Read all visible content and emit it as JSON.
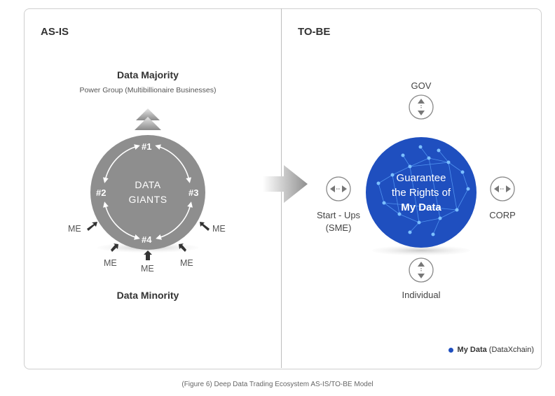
{
  "as_is": {
    "title": "AS-IS",
    "data_majority": "Data Majority",
    "power_group": "Power Group (Multibillionaire Businesses)",
    "giants_line1": "DATA",
    "giants_line2": "GIANTS",
    "ranks": [
      "#1",
      "#2",
      "#3",
      "#4"
    ],
    "me_label": "ME",
    "data_minority": "Data Minority"
  },
  "to_be": {
    "title": "TO-BE",
    "gov": "GOV",
    "startups_line1": "Start - Ups",
    "startups_line2": "(SME)",
    "corp": "CORP",
    "individual": "Individual",
    "center_line1": "Guarantee",
    "center_line2": "the Rights of",
    "center_line3": "My Data",
    "legend_bold": "My Data",
    "legend_rest": "(DataXchain)"
  },
  "caption": "(Figure 6) Deep Data Trading Ecosystem AS-IS/TO-BE Model",
  "colors": {
    "giant_circle": "#8e8e8e",
    "center_circle": "#1f4fbf",
    "arrow_gray": "#9a9a9a",
    "border": "#cfcfcf"
  }
}
